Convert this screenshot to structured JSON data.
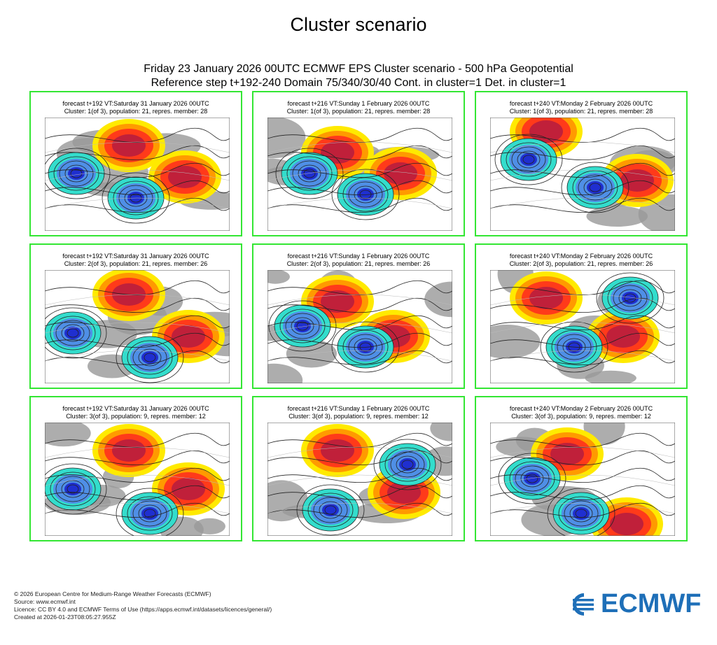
{
  "page_title": "Cluster scenario",
  "subtitle_line1": "Friday 23 January 2026 00UTC ECMWF EPS Cluster scenario - 500 hPa Geopotential",
  "subtitle_line2": "Reference step t+192-240 Domain 75/340/30/40 Cont. in cluster=1 Det. in cluster=1",
  "panels": [
    {
      "header1": "forecast t+192 VT:Saturday 31 January 2026 00UTC",
      "header2": "Cluster: 1(of 3), population: 21, repres. member: 28"
    },
    {
      "header1": "forecast t+216 VT:Sunday 1 February 2026 00UTC",
      "header2": "Cluster: 1(of 3), population: 21, repres. member: 28"
    },
    {
      "header1": "forecast t+240 VT:Monday 2 February 2026 00UTC",
      "header2": "Cluster: 1(of 3), population: 21, repres. member: 28"
    },
    {
      "header1": "forecast t+192 VT:Saturday 31 January 2026 00UTC",
      "header2": "Cluster: 2(of 3), population: 21, repres. member: 26"
    },
    {
      "header1": "forecast t+216 VT:Sunday 1 February 2026 00UTC",
      "header2": "Cluster: 2(of 3), population: 21, repres. member: 26"
    },
    {
      "header1": "forecast t+240 VT:Monday 2 February 2026 00UTC",
      "header2": "Cluster: 2(of 3), population: 21, repres. member: 26"
    },
    {
      "header1": "forecast t+192 VT:Saturday 31 January 2026 00UTC",
      "header2": "Cluster: 3(of 3), population: 9, repres. member: 12"
    },
    {
      "header1": "forecast t+216 VT:Sunday 1 February 2026 00UTC",
      "header2": "Cluster: 3(of 3), population: 9, repres. member: 12"
    },
    {
      "header1": "forecast t+240 VT:Monday 2 February 2026 00UTC",
      "header2": "Cluster: 3(of 3), population: 9, repres. member: 12"
    }
  ],
  "footer": {
    "copyright": "© 2026 European Centre for Medium-Range Weather Forecasts (ECMWF)",
    "source": "Source: www.ecmwf.int",
    "licence": "Licence: CC BY 4.0 and ECMWF Terms of Use (https://apps.ecmwf.int/datasets/licences/general/)",
    "created": "Created at 2026-01-23T08:05:27.955Z"
  },
  "logo_text": "ECMWF",
  "colors": {
    "panel_border": "#33e633",
    "anomaly_strong_pos": "#c0203a",
    "anomaly_pos": "#ff3a1a",
    "anomaly_mid_pos": "#ff9a00",
    "anomaly_weak_pos": "#ffea00",
    "anomaly_weak_neg": "#33ddcc",
    "anomaly_neg": "#4f8fe6",
    "anomaly_strong_neg": "#1f2fd0",
    "land_gray": "#999999",
    "logo_blue": "#1e6fb8"
  }
}
